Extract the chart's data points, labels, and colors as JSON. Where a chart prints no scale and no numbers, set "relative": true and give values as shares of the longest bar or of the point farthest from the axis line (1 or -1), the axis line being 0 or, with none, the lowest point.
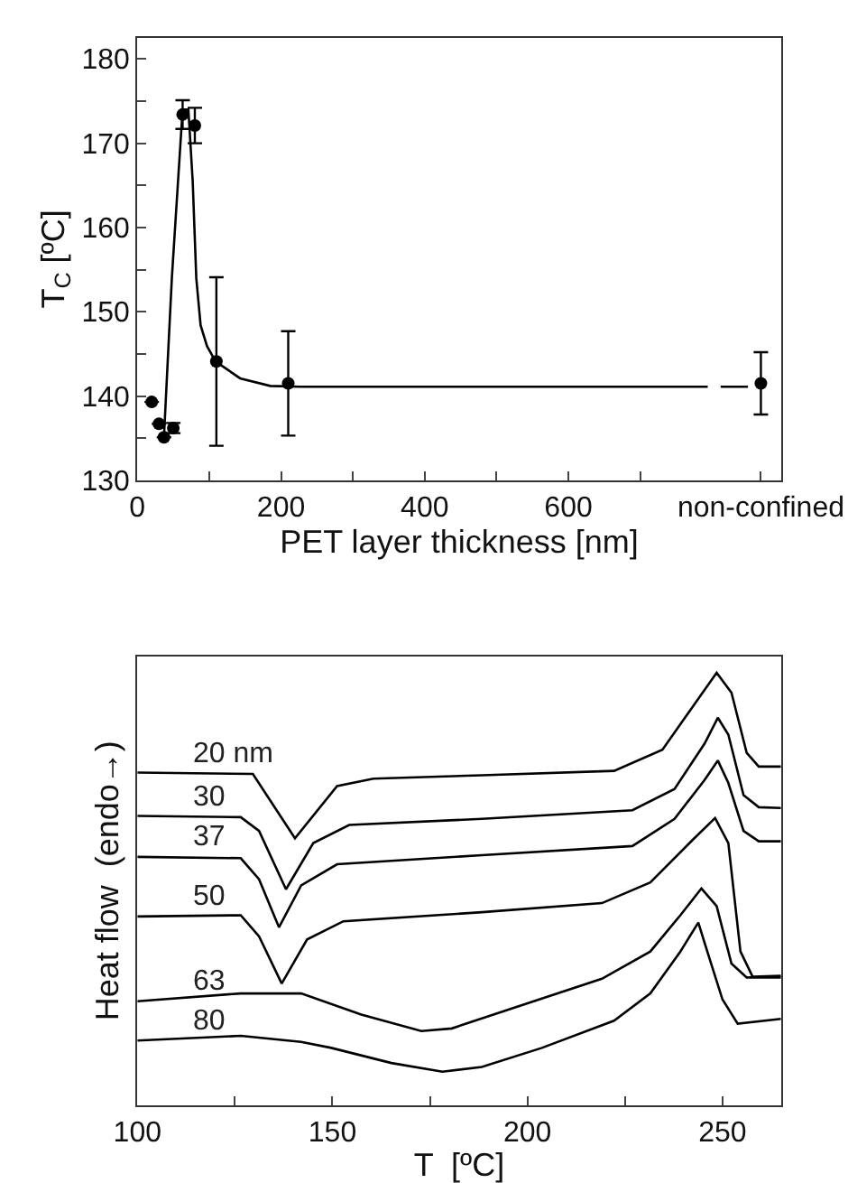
{
  "chart_data": [
    {
      "type": "scatter",
      "xlabel": "PET layer thickness [nm]",
      "ylabel": "T$_{C}$ [ºC]",
      "xlim": [
        0,
        896
      ],
      "xticks": [
        0,
        {
          "value": 100,
          "label": null
        },
        200,
        {
          "value": 300,
          "label": null
        },
        400,
        {
          "value": 500,
          "label": null
        },
        600,
        {
          "value": 700,
          "label": null
        },
        {
          "value": 868,
          "label": "non-confined"
        }
      ],
      "ylim": [
        130,
        182.5
      ],
      "yticks": [
        130,
        {
          "value": 135,
          "label": null
        },
        140,
        {
          "value": 145,
          "label": null
        },
        150,
        {
          "value": 155,
          "label": null
        },
        160,
        {
          "value": 165,
          "label": null
        },
        170,
        {
          "value": 175,
          "label": null
        },
        180
      ],
      "series": [
        {
          "type": "scatter",
          "marker": "circle",
          "color": "#000000",
          "x": [
            20,
            30,
            37,
            50,
            63,
            80,
            110,
            210,
            868
          ],
          "values": [
            139.3,
            136.7,
            135.1,
            136.2,
            173.4,
            172.1,
            144.1,
            141.5,
            141.5
          ],
          "errors": [
            null,
            null,
            null,
            0.6,
            1.7,
            2.1,
            10,
            6.2,
            3.7
          ]
        },
        {
          "type": "line",
          "marker": "none",
          "color": "#000000",
          "x": [
            37,
            48,
            63,
            71,
            77,
            82,
            88,
            97,
            109,
            143,
            185,
            227,
            794,
            803,
            812,
            850
          ],
          "values": [
            135.1,
            154,
            174,
            174,
            165.5,
            154,
            148.4,
            145.9,
            144.1,
            142.1,
            141.2,
            141.1,
            141.1,
            null,
            141.1,
            141.1
          ]
        }
      ]
    },
    {
      "type": "line",
      "relative": true,
      "xlabel": "T  [ºC]",
      "ylabel": "Heat flow  (endo→)",
      "xlim": [
        100,
        265
      ],
      "xticks": [
        100,
        {
          "value": 125,
          "label": null
        },
        150,
        {
          "value": 175,
          "label": null
        },
        200,
        {
          "value": 225,
          "label": null
        },
        250
      ],
      "tick_labels": "x",
      "marker": "none",
      "series": [
        {
          "name": "20 nm",
          "color": "#000000",
          "x": [
            100,
            129.6,
            140.4,
            151.2,
            160.5,
            188.3,
            222.2,
            234.6,
            243.8,
            248.5,
            252.3,
            256.2,
            259.3,
            265
          ],
          "values": [
            0.769,
            0.766,
            0.617,
            0.738,
            0.755,
            0.763,
            0.773,
            0.822,
            0.94,
            1.0,
            0.954,
            0.815,
            0.783,
            0.783
          ]
        },
        {
          "name": "30",
          "color": "#000000",
          "x": [
            100,
            126.5,
            131.2,
            138.1,
            145.1,
            154.3,
            188.3,
            226.9,
            237.7,
            245.4,
            248.8,
            251.5,
            255.4,
            259.3,
            265
          ],
          "values": [
            0.669,
            0.666,
            0.634,
            0.499,
            0.606,
            0.648,
            0.662,
            0.682,
            0.731,
            0.836,
            0.896,
            0.857,
            0.717,
            0.689,
            0.687
          ]
        },
        {
          "name": "37",
          "color": "#000000",
          "x": [
            100,
            126.5,
            131.2,
            136.3,
            142.0,
            151.2,
            188.3,
            226.9,
            237.7,
            245.4,
            248.8,
            251.5,
            255.4,
            259.3,
            265
          ],
          "values": [
            0.574,
            0.571,
            0.522,
            0.411,
            0.508,
            0.557,
            0.578,
            0.599,
            0.662,
            0.752,
            0.797,
            0.745,
            0.634,
            0.61,
            0.61
          ]
        },
        {
          "name": "50",
          "color": "#000000",
          "x": [
            100,
            126.5,
            131.2,
            137.0,
            143.5,
            152.8,
            188.3,
            219.1,
            231.5,
            242.3,
            248.1,
            251.5,
            254.6,
            257.7,
            265
          ],
          "values": [
            0.436,
            0.439,
            0.39,
            0.281,
            0.383,
            0.425,
            0.446,
            0.467,
            0.515,
            0.613,
            0.664,
            0.606,
            0.355,
            0.297,
            0.299
          ]
        },
        {
          "name": "63",
          "color": "#000000",
          "x": [
            100,
            126.5,
            142.0,
            157.4,
            172.8,
            180.6,
            196.0,
            219.1,
            231.5,
            239.2,
            244.6,
            248.5,
            252.3,
            256.2,
            265
          ],
          "values": [
            0.24,
            0.258,
            0.258,
            0.209,
            0.171,
            0.177,
            0.223,
            0.292,
            0.355,
            0.439,
            0.501,
            0.46,
            0.327,
            0.295,
            0.295
          ]
        },
        {
          "name": "80",
          "color": "#000000",
          "x": [
            100,
            126.5,
            142.0,
            149.7,
            165.1,
            178.2,
            188.3,
            203.7,
            222.2,
            231.5,
            239.2,
            243.8,
            246.1,
            250.0,
            253.9,
            265
          ],
          "values": [
            0.149,
            0.16,
            0.146,
            0.132,
            0.097,
            0.077,
            0.088,
            0.132,
            0.195,
            0.258,
            0.355,
            0.422,
            0.355,
            0.244,
            0.188,
            0.199
          ]
        }
      ]
    }
  ]
}
